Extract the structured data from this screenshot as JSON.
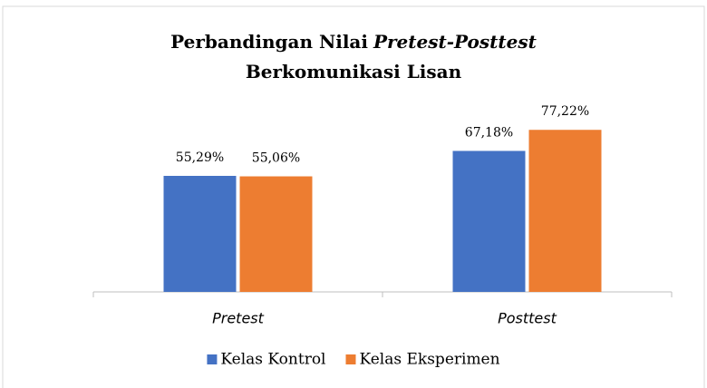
{
  "chart_data": {
    "type": "bar",
    "title": {
      "lines": [
        [
          {
            "text": "Perbandingan Nilai"
          },
          {
            "text": "Pretest-Posttest",
            "italic": true
          }
        ],
        [
          {
            "text": "Berkomunikasi Lisan"
          }
        ]
      ]
    },
    "categories": [
      "Pretest",
      "Posttest"
    ],
    "series": [
      {
        "name": "Kelas Kontrol",
        "color": "#4472c4",
        "values": [
          55.29,
          67.18
        ],
        "value_labels": [
          "55,29%",
          "67,18%"
        ]
      },
      {
        "name": "Kelas Eksperimen",
        "color": "#ed7d31",
        "values": [
          55.06,
          77.22
        ],
        "value_labels": [
          "55,06%",
          "77,22%"
        ]
      }
    ],
    "ylim": [
      0,
      100
    ],
    "legend": "bottom"
  }
}
